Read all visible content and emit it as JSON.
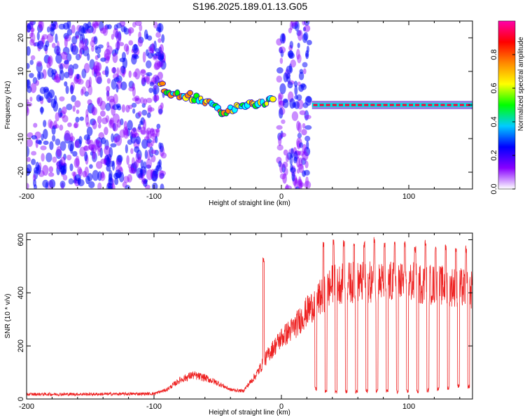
{
  "title": "S196.2025.189.01.13.G05",
  "chart_data": [
    {
      "type": "heatmap",
      "xlabel": "Height of straight line (km)",
      "ylabel": "Frequency (Hz)",
      "xlim": [
        -200,
        150
      ],
      "ylim": [
        -25,
        25
      ],
      "x_ticks": [
        -200,
        -100,
        0,
        100
      ],
      "y_ticks": [
        -20,
        -10,
        0,
        10,
        20
      ],
      "colorbar": {
        "label": "Normalized spectral amplitude",
        "range": [
          0,
          1
        ],
        "ticks": [
          "0.0",
          "0.2",
          "0.4",
          "0.6",
          "0.8"
        ],
        "colors": [
          "#ffffff",
          "#8800ff",
          "#0000ff",
          "#00ffff",
          "#00ff00",
          "#ffff00",
          "#ff8800",
          "#ff0000",
          "#ff00aa"
        ]
      },
      "features": [
        {
          "name": "noise region",
          "x_range": [
            -200,
            -92
          ],
          "freq_range": [
            -25,
            25
          ],
          "amplitude": 0.15
        },
        {
          "name": "transition signal",
          "points": [
            [
              -95,
              6
            ],
            [
              -85,
              3
            ],
            [
              -75,
              3
            ],
            [
              -65,
              2
            ],
            [
              -55,
              0
            ],
            [
              -45,
              -2
            ],
            [
              -35,
              -1
            ],
            [
              -25,
              0
            ],
            [
              -15,
              1
            ],
            [
              -5,
              1
            ]
          ],
          "amplitude": 0.55
        },
        {
          "name": "noise band",
          "x_range": [
            -2,
            22
          ],
          "freq_range": [
            -25,
            25
          ],
          "amplitude": 0.15
        },
        {
          "name": "stable tone",
          "x_range": [
            24,
            150
          ],
          "freq": 0,
          "amplitude": 0.9
        }
      ]
    },
    {
      "type": "line",
      "xlabel": "Height of straight line (km)",
      "ylabel": "SNR (10 * v/v)",
      "xlim": [
        -200,
        150
      ],
      "ylim": [
        0,
        625
      ],
      "x_ticks": [
        -200,
        -100,
        0,
        100
      ],
      "y_ticks": [
        0,
        200,
        400,
        600
      ],
      "line_color": "#ee2222",
      "trend": {
        "x": [
          -200,
          -150,
          -100,
          -90,
          -80,
          -70,
          -60,
          -50,
          -40,
          -30,
          -20,
          -10,
          0,
          10,
          20,
          30,
          40,
          50,
          60,
          80,
          100,
          120,
          140,
          150
        ],
        "y": [
          18,
          18,
          20,
          35,
          70,
          90,
          80,
          60,
          35,
          30,
          90,
          170,
          230,
          270,
          330,
          380,
          430,
          440,
          440,
          440,
          440,
          430,
          420,
          410
        ]
      },
      "dips": {
        "x": [
          27,
          35,
          43,
          51,
          59,
          67,
          75,
          83,
          91,
          99,
          107,
          115,
          123,
          131,
          139,
          147
        ],
        "y": [
          30,
          22,
          20,
          22,
          20,
          22,
          25,
          22,
          20,
          20,
          22,
          25,
          30,
          35,
          40,
          40
        ]
      },
      "spikes": {
        "x": [
          -14,
          33,
          41,
          49,
          57,
          65,
          73,
          81,
          89,
          97,
          105,
          113,
          121,
          129,
          137,
          145
        ],
        "y": [
          540,
          600,
          605,
          600,
          600,
          600,
          610,
          600,
          600,
          600,
          580,
          600,
          580,
          590,
          580,
          580
        ]
      }
    }
  ]
}
